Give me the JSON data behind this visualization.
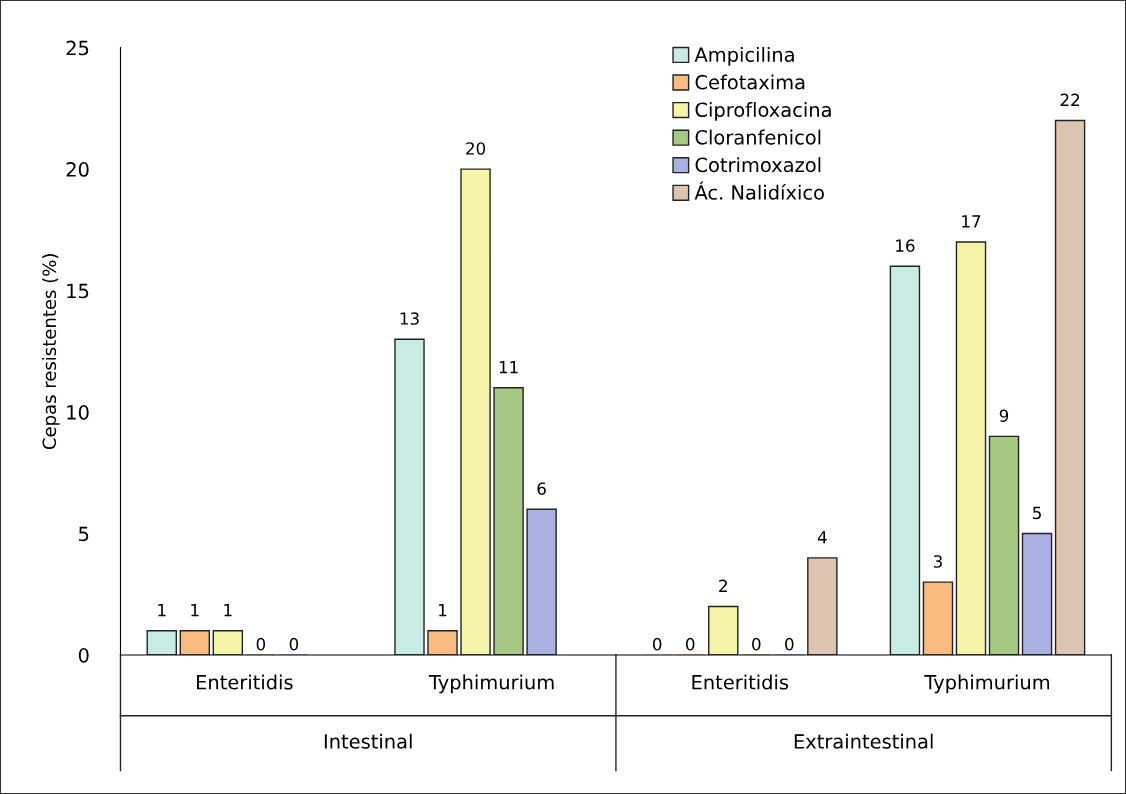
{
  "chart_data": {
    "type": "bar",
    "ylabel": "Cepas resistentes (%)",
    "categories": [
      "Enteritidis",
      "Typhimurium",
      "Enteritidis",
      "Typhimurium"
    ],
    "annotations": [
      "Intestinal",
      "Extraintestinal"
    ],
    "series": [
      {
        "name": "Ampicilina",
        "color": "#c8ebe3",
        "values": [
          1,
          13,
          0,
          16
        ]
      },
      {
        "name": "Cefotaxima",
        "color": "#f8bb80",
        "values": [
          1,
          1,
          0,
          3
        ]
      },
      {
        "name": "Ciprofloxacina",
        "color": "#f6f4a9",
        "values": [
          1,
          20,
          2,
          17
        ]
      },
      {
        "name": "Cloranfenicol",
        "color": "#a6c983",
        "values": [
          0,
          11,
          0,
          9
        ]
      },
      {
        "name": "Cotrimoxazol",
        "color": "#aab0e2",
        "values": [
          0,
          6,
          0,
          5
        ]
      },
      {
        "name": "Ác. Nalidíxico",
        "color": "#dcc4b0",
        "values": [
          null,
          null,
          4,
          22
        ]
      }
    ],
    "ylim": [
      0,
      25
    ],
    "yticks": [
      0,
      5,
      10,
      15,
      20,
      25
    ],
    "data_labels": true,
    "grid": false,
    "legend": "top right"
  }
}
